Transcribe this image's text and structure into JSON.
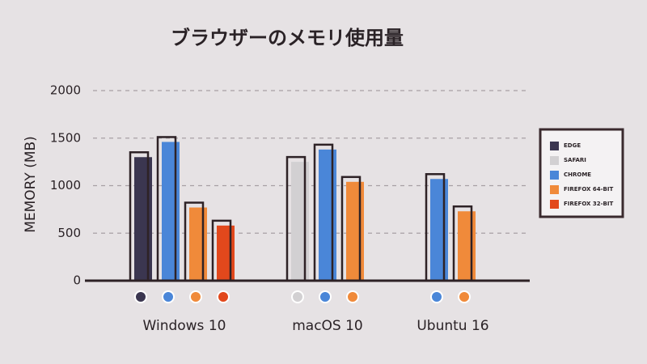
{
  "chart_data": {
    "type": "bar",
    "title": "ブラウザーのメモリ使用量",
    "y_label": "MEMORY (MB)",
    "categories": [
      "Windows 10",
      "macOS 10",
      "Ubuntu 16"
    ],
    "series": [
      {
        "name": "EDGE",
        "color": "#3b3650",
        "values": [
          1300,
          null,
          null
        ]
      },
      {
        "name": "SAFARI",
        "color": "#d2d0d2",
        "values": [
          null,
          1250,
          null
        ]
      },
      {
        "name": "CHROME",
        "color": "#4a86d8",
        "values": [
          1460,
          1380,
          1070
        ]
      },
      {
        "name": "FIREFOX 64-BIT",
        "color": "#f08a3a",
        "values": [
          770,
          1040,
          730
        ]
      },
      {
        "name": "FIREFOX 32-BIT",
        "color": "#e2481c",
        "values": [
          580,
          null,
          null
        ]
      }
    ],
    "ylim": [
      0,
      2000
    ],
    "yticks": [
      0,
      500,
      1000,
      1500,
      2000
    ],
    "grid": true,
    "legend": "right"
  }
}
